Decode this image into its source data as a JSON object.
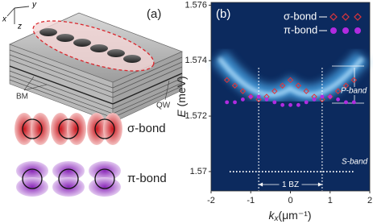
{
  "panel_a": {
    "label": "(a)",
    "axis_x": "x",
    "axis_y": "y",
    "axis_z": "z",
    "bm": "BM",
    "qw": "QW",
    "sigma": "σ-bond",
    "pi": "π-bond"
  },
  "chart_data": {
    "type": "scatter",
    "label": "(b)",
    "xlabel": {
      "symbol": "k",
      "subscript": "x",
      "unit": "(μm⁻¹)"
    },
    "ylabel": {
      "symbol": "E",
      "unit": " (meV)"
    },
    "x": [
      -1.6,
      -1.4,
      -1.2,
      -1.0,
      -0.8,
      -0.6,
      -0.4,
      -0.2,
      0,
      0.2,
      0.4,
      0.6,
      0.8,
      1.0,
      1.2,
      1.4,
      1.6
    ],
    "series": [
      {
        "name": "σ-bond",
        "color": "#e0353a",
        "marker": "diamond",
        "values": [
          1.5733,
          1.5731,
          1.5729,
          1.5727,
          1.5726,
          1.5727,
          1.5729,
          1.5731,
          1.5733,
          1.5731,
          1.5729,
          1.5727,
          1.5726,
          1.5727,
          1.5729,
          1.5731,
          1.5733
        ]
      },
      {
        "name": "π-bond",
        "color": "#b12be0",
        "marker": "circle",
        "values": [
          1.5725,
          1.5725,
          1.5726,
          1.5727,
          1.5727,
          1.5726,
          1.5725,
          1.5724,
          1.5724,
          1.5724,
          1.5725,
          1.5726,
          1.5727,
          1.5727,
          1.5726,
          1.5725,
          1.5725
        ]
      }
    ],
    "xlim": [
      -2,
      2
    ],
    "xticks": [
      -2,
      -1,
      0,
      1,
      2
    ],
    "ylim": [
      1.5693,
      1.5761
    ],
    "yticks": [
      1.57,
      1.572,
      1.574,
      1.576
    ],
    "bz_edges": [
      -0.8,
      0.8
    ],
    "bz_label": "1 BZ",
    "p_band": "P-band",
    "s_band": "S-band",
    "legend": "upper right"
  }
}
